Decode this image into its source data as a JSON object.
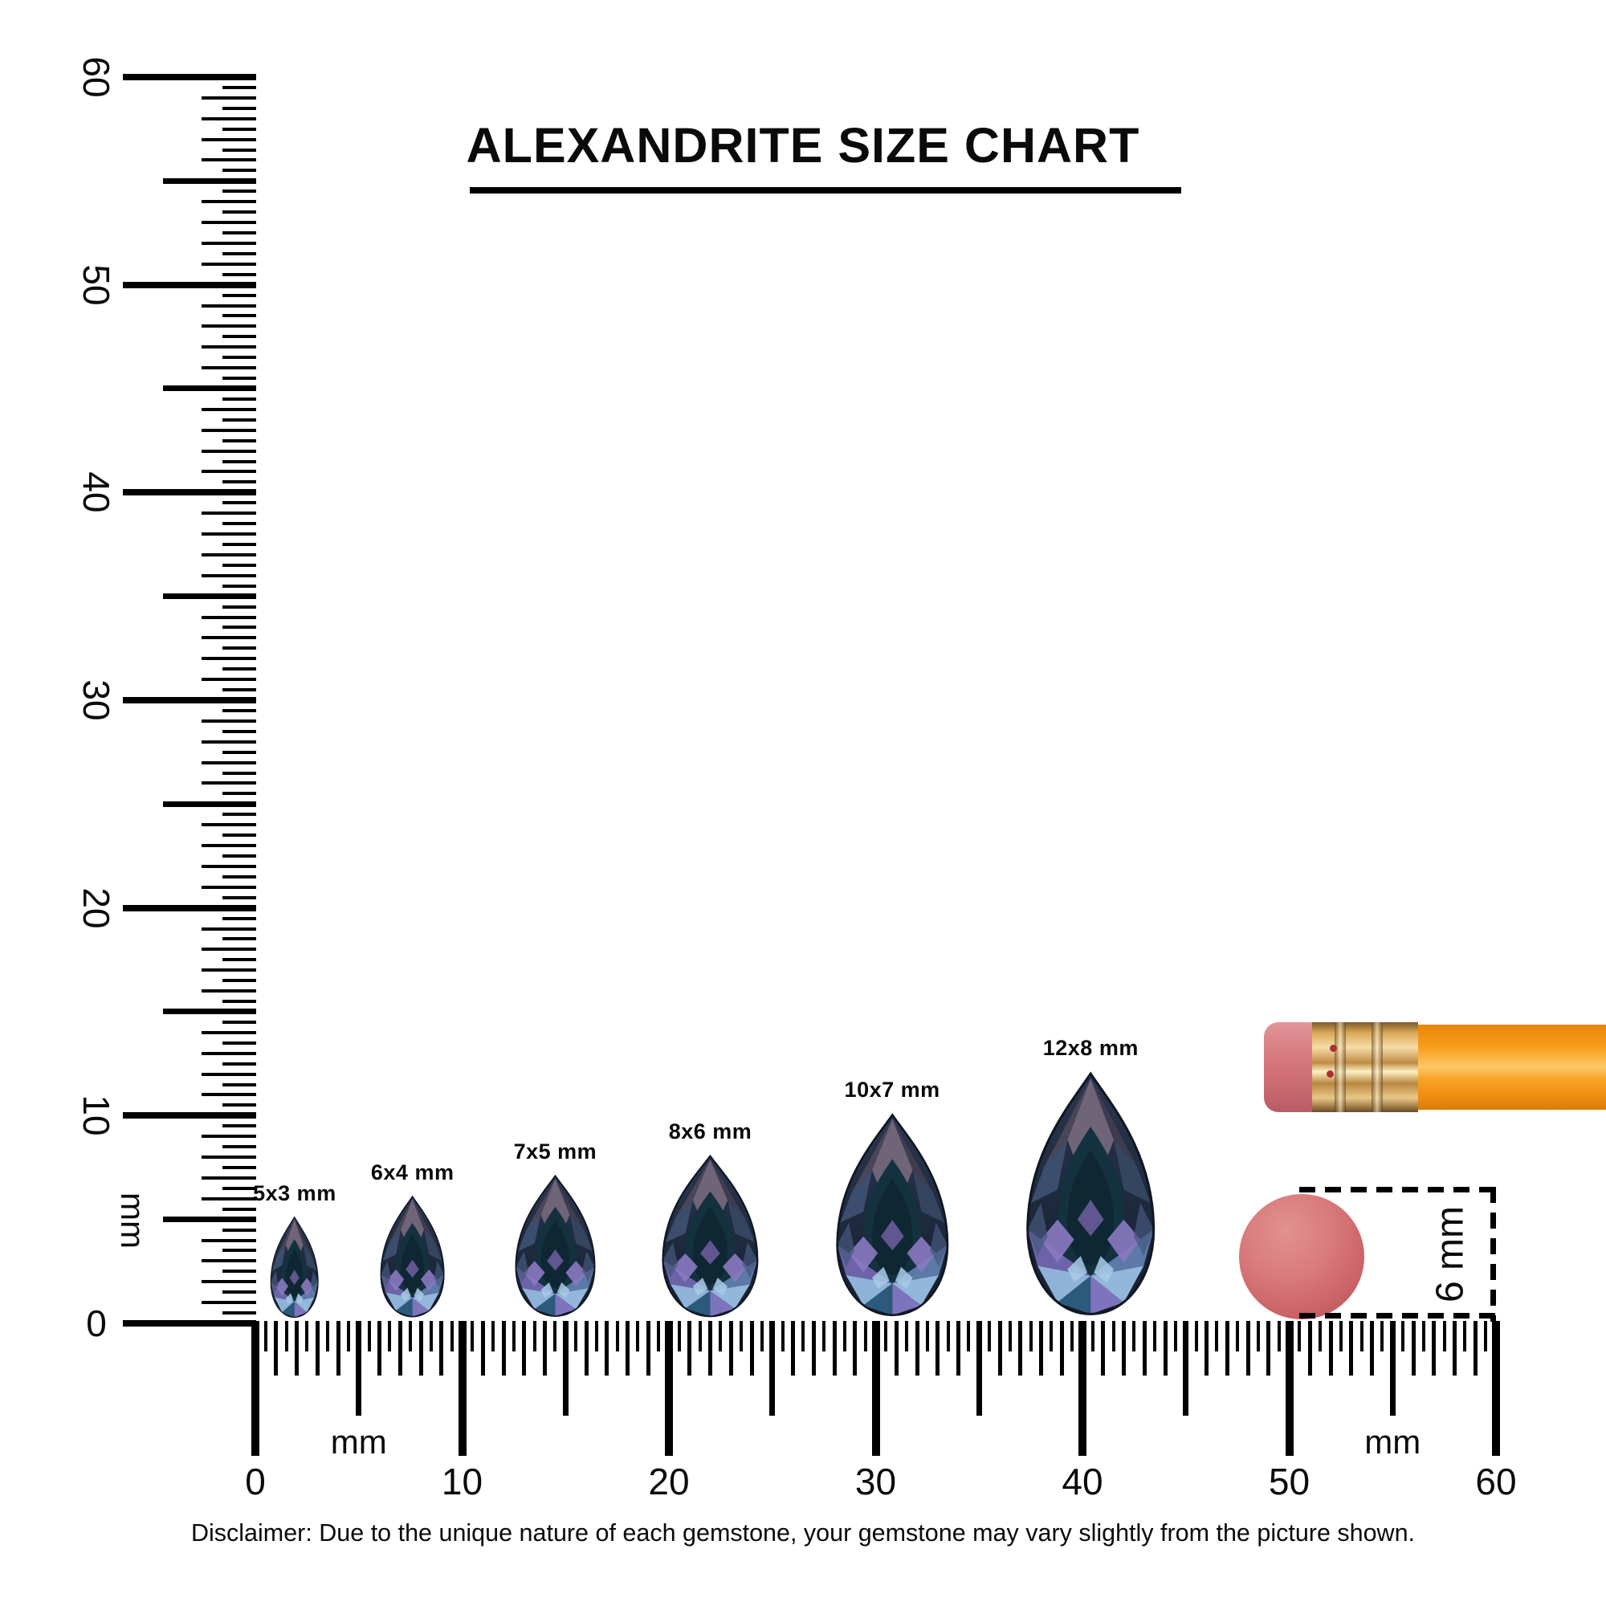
{
  "title": {
    "text": "ALEXANDRITE SIZE CHART"
  },
  "disclaimer": "Disclaimer: Due to the unique nature of each gemstone, your gemstone may vary slightly from the picture shown.",
  "annotation": {
    "eraser_diameter_label": "6 mm"
  },
  "gems": [
    {
      "label": "5x3 mm",
      "width_mm": 3,
      "length_mm": 5,
      "center_mm": 1.9
    },
    {
      "label": "6x4 mm",
      "width_mm": 4,
      "length_mm": 6,
      "center_mm": 7.6
    },
    {
      "label": "7x5 mm",
      "width_mm": 5,
      "length_mm": 7,
      "center_mm": 14.5
    },
    {
      "label": "8x6 mm",
      "width_mm": 6,
      "length_mm": 8,
      "center_mm": 22.0
    },
    {
      "label": "10x7 mm",
      "width_mm": 7,
      "length_mm": 10,
      "center_mm": 30.8
    },
    {
      "label": "12x8 mm",
      "width_mm": 8,
      "length_mm": 12,
      "center_mm": 40.4
    }
  ],
  "rulers": {
    "unit": "mm",
    "vertical": {
      "labels": [
        {
          "text": "60",
          "mm": 60
        },
        {
          "text": "50",
          "mm": 50
        },
        {
          "text": "40",
          "mm": 40
        },
        {
          "text": "30",
          "mm": 30
        },
        {
          "text": "20",
          "mm": 20
        },
        {
          "text": "10",
          "mm": 10
        },
        {
          "text": "0",
          "mm": 0
        }
      ]
    },
    "horizontal": {
      "labels": [
        {
          "text": "0",
          "mm": 0
        },
        {
          "text": "10",
          "mm": 10
        },
        {
          "text": "20",
          "mm": 20
        },
        {
          "text": "30",
          "mm": 30
        },
        {
          "text": "40",
          "mm": 40
        },
        {
          "text": "50",
          "mm": 50
        },
        {
          "text": "60",
          "mm": 60
        }
      ]
    }
  },
  "chart_data": {
    "type": "table",
    "title": "ALEXANDRITE SIZE CHART",
    "categories": [
      "5x3 mm",
      "6x4 mm",
      "7x5 mm",
      "8x6 mm",
      "10x7 mm",
      "12x8 mm"
    ],
    "series": [
      {
        "name": "length_mm",
        "values": [
          5,
          6,
          7,
          8,
          10,
          12
        ]
      },
      {
        "name": "width_mm",
        "values": [
          3,
          4,
          5,
          6,
          7,
          8
        ]
      },
      {
        "name": "center_position_on_ruler_mm",
        "values": [
          1.9,
          7.6,
          14.5,
          22.0,
          30.8,
          40.4
        ]
      }
    ],
    "rulers": {
      "vertical": {
        "min_mm": 0,
        "max_mm": 60,
        "tick_step_mm": 0.5,
        "label_step_mm": 10,
        "unit": "mm"
      },
      "horizontal": {
        "min_mm": 0,
        "max_mm": 60,
        "tick_step_mm": 0.5,
        "label_step_mm": 10,
        "unit": "mm"
      }
    },
    "reference_objects": [
      {
        "name": "pencil-eraser-end"
      },
      {
        "name": "round-eraser",
        "diameter_mm": 6,
        "diameter_label": "6 mm"
      }
    ],
    "gem_colors": {
      "base": "#1e2a3e",
      "table_facet": "#6f6478",
      "violet": "#7a6fb2",
      "light_blue": "#93b7da",
      "teal": "#2b5a7c"
    }
  }
}
